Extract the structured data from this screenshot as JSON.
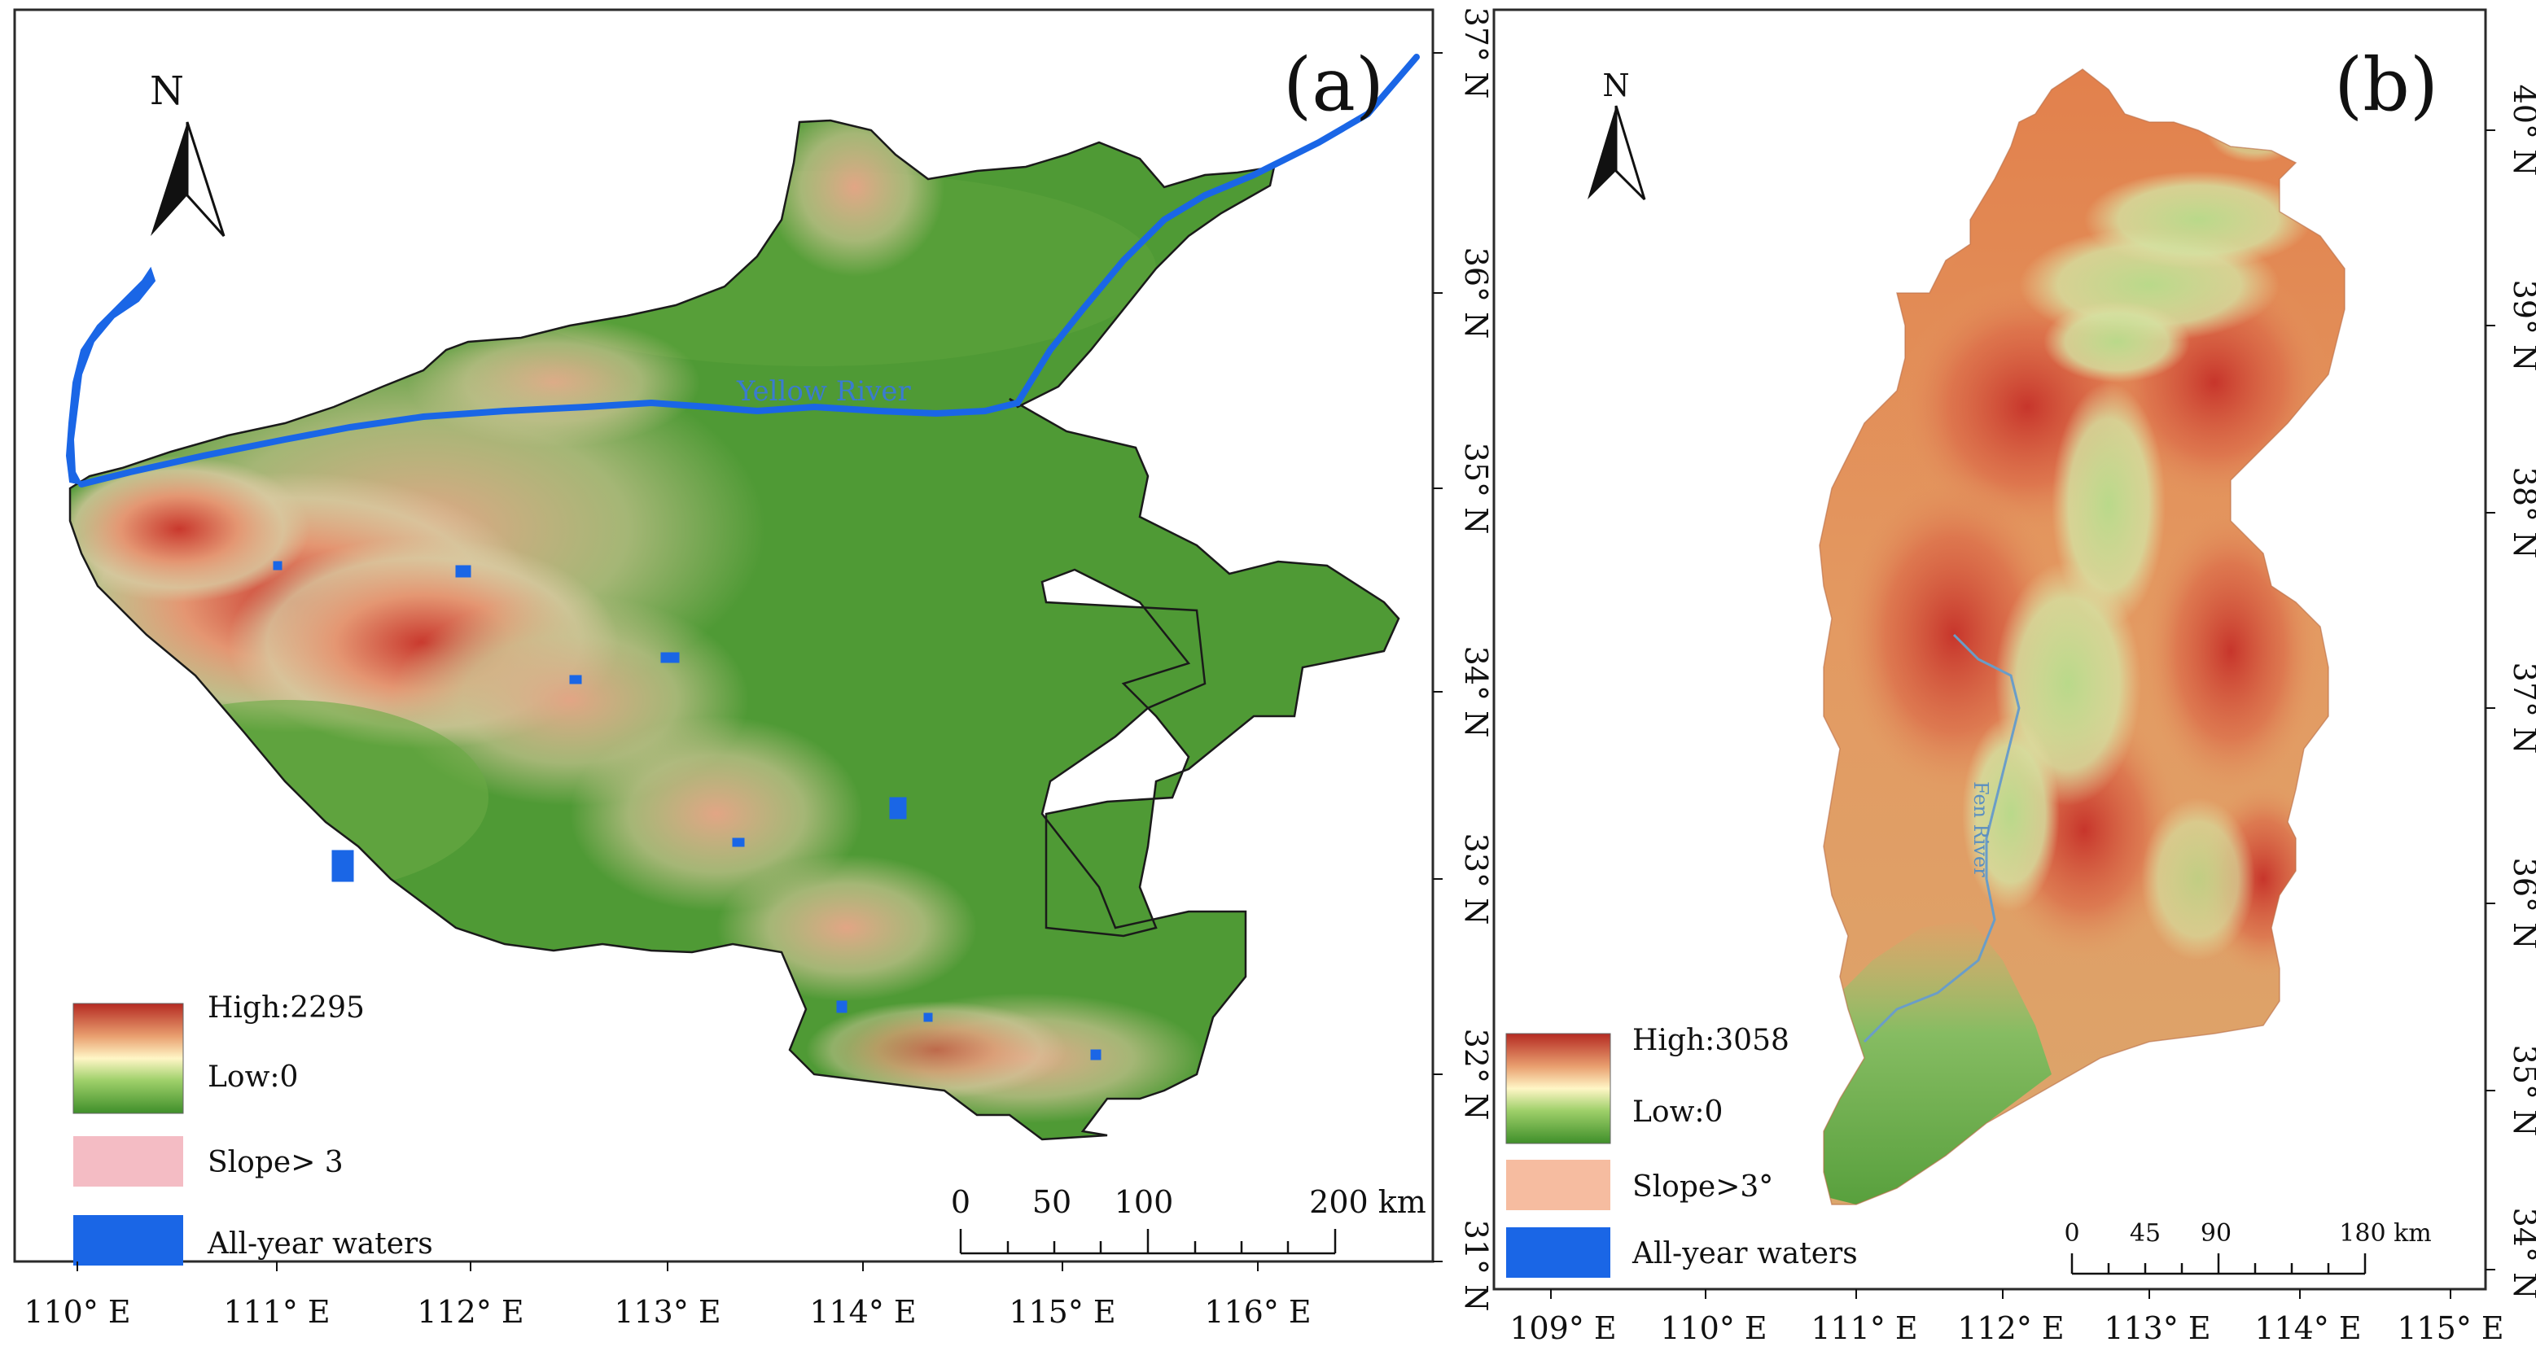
{
  "panels": [
    {
      "id": "a",
      "label": "(a)",
      "north": "N",
      "lon_ticks": [
        "110° E",
        "111° E",
        "112° E",
        "113° E",
        "114° E",
        "115° E",
        "116° E"
      ],
      "lat_ticks": [
        "37° N",
        "36° N",
        "35° N",
        "34° N",
        "33° N",
        "32° N",
        "31° N"
      ],
      "river_label": "Yellow River",
      "legend": {
        "high": "High:2295",
        "low": "Low:0",
        "slope": "Slope> 3",
        "waters": "All-year waters",
        "slope_color": "#f4bcc4",
        "water_color": "#1a66e6"
      },
      "scalebar": {
        "labels": [
          "0",
          "50",
          "100",
          "200 km"
        ]
      }
    },
    {
      "id": "b",
      "label": "(b)",
      "north": "N",
      "lon_ticks": [
        "109° E",
        "110° E",
        "111° E",
        "112° E",
        "113° E",
        "114° E",
        "115° E"
      ],
      "lat_ticks": [
        "40° N",
        "39° N",
        "38° N",
        "37° N",
        "36° N",
        "35° N",
        "34° N"
      ],
      "river_label": "Fen River",
      "legend": {
        "high": "High:3058",
        "low": "Low:0",
        "slope": "Slope>3°",
        "waters": "All-year waters",
        "slope_color": "#f6bca0",
        "water_color": "#1a66e6"
      },
      "scalebar": {
        "labels": [
          "0",
          "45",
          "90",
          "180 km"
        ]
      }
    }
  ],
  "colors": {
    "lowland": "#4f9a35",
    "highland": "#c23a2e",
    "frame": "#2a2a2a"
  }
}
